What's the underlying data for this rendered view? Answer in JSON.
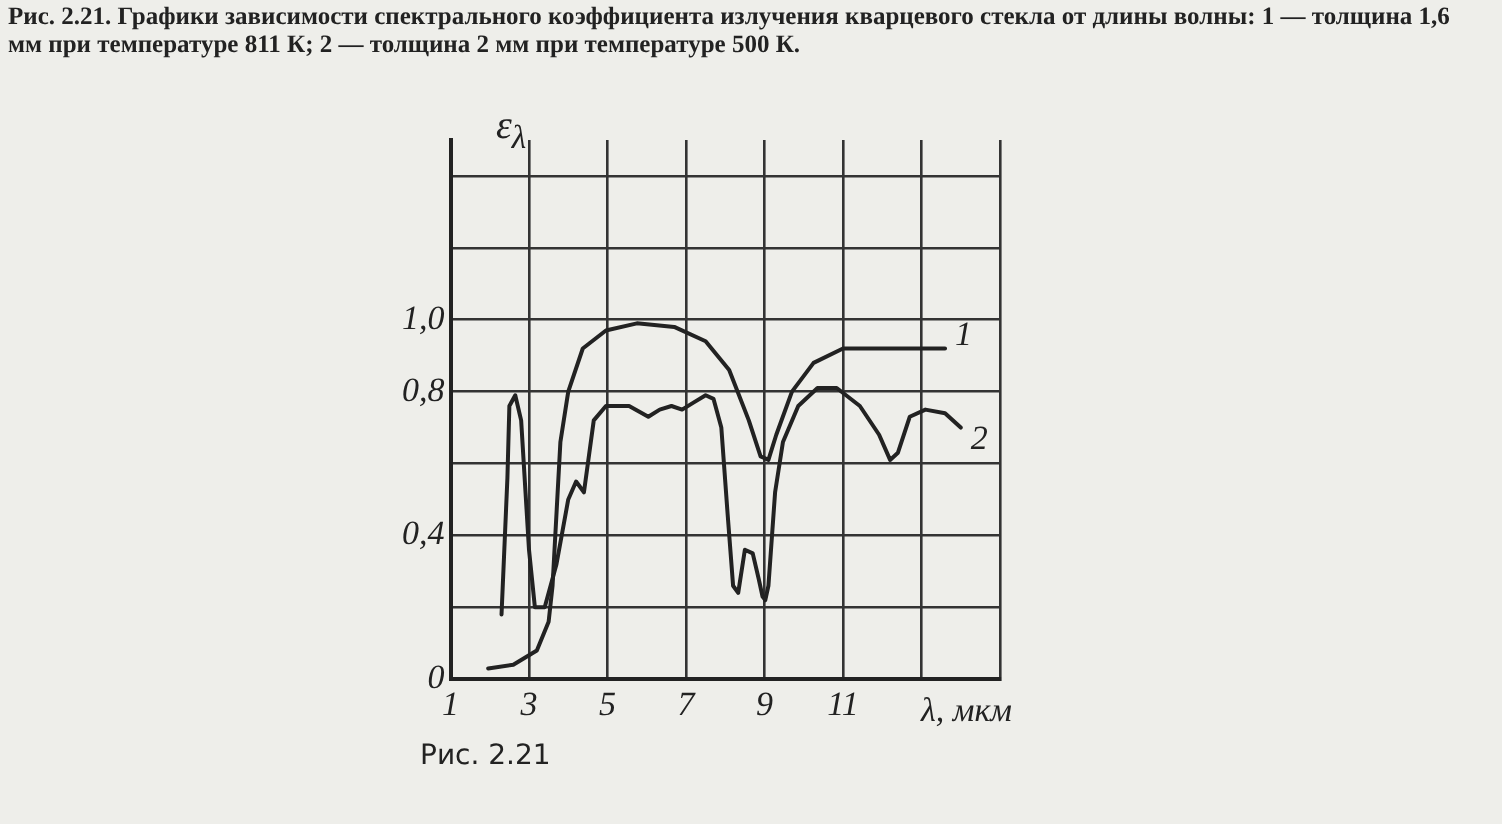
{
  "chart_data": {
    "type": "line",
    "title": "Рис. 2.21. Графики зависимости спектрального коэффициента излучения кварцевого стекла от длины волны: 1 — толщина 1,6 мм при температуре 811 К; 2 — толщина 2 мм при температуре 500 К.",
    "xlabel": "λ, мкм",
    "ylabel": "ε$_{λ}$",
    "annotations": [
      "Рис. 2.21"
    ],
    "xlim": [
      1,
      15
    ],
    "xticks": [
      1,
      3,
      5,
      7,
      9,
      11,
      {
        "value": 13,
        "label": null
      },
      {
        "value": 15,
        "label": null
      }
    ],
    "ylim": [
      0,
      1.5
    ],
    "yticks": [
      0,
      {
        "value": 0.2,
        "label": null
      },
      {
        "value": 0.4,
        "label": "0,4"
      },
      {
        "value": 0.6,
        "label": null
      },
      {
        "value": 0.8,
        "label": "0,8"
      },
      {
        "value": 1.0,
        "label": "1,0"
      },
      {
        "value": 1.2,
        "label": null
      },
      {
        "value": 1.4,
        "label": null
      }
    ],
    "grid": true,
    "marker": "none",
    "line_style": "solid",
    "series": [
      {
        "name": "1",
        "color": "#222222",
        "x": [
          1.96,
          2.6,
          3.2,
          3.5,
          3.6,
          3.7,
          3.8,
          4.0,
          4.37,
          4.96,
          5.75,
          6.7,
          7.5,
          8.1,
          8.6,
          8.9,
          9.1,
          9.3,
          9.7,
          10.25,
          11.0,
          12.2,
          13.6
        ],
        "values": [
          0.03,
          0.04,
          0.08,
          0.16,
          0.26,
          0.46,
          0.66,
          0.8,
          0.92,
          0.97,
          0.99,
          0.98,
          0.94,
          0.86,
          0.72,
          0.62,
          0.61,
          0.68,
          0.8,
          0.88,
          0.92,
          0.92,
          0.92
        ]
      },
      {
        "name": "2",
        "color": "#222222",
        "x": [
          2.3,
          2.45,
          2.5,
          2.65,
          2.8,
          3.0,
          3.15,
          3.4,
          3.7,
          4.0,
          4.2,
          4.4,
          4.5,
          4.65,
          4.96,
          5.55,
          6.04,
          6.33,
          6.63,
          6.9,
          7.2,
          7.5,
          7.7,
          7.9,
          8.06,
          8.2,
          8.33,
          8.5,
          8.7,
          8.85,
          8.95,
          9.02,
          9.1,
          9.27,
          9.47,
          9.86,
          10.35,
          10.84,
          11.43,
          11.92,
          12.2,
          12.4,
          12.7,
          13.1,
          13.6,
          14.0
        ],
        "values": [
          0.18,
          0.56,
          0.76,
          0.79,
          0.72,
          0.36,
          0.2,
          0.2,
          0.32,
          0.5,
          0.55,
          0.52,
          0.6,
          0.72,
          0.76,
          0.76,
          0.73,
          0.75,
          0.76,
          0.75,
          0.77,
          0.79,
          0.78,
          0.7,
          0.46,
          0.26,
          0.24,
          0.36,
          0.35,
          0.28,
          0.23,
          0.22,
          0.26,
          0.52,
          0.66,
          0.76,
          0.81,
          0.81,
          0.76,
          0.68,
          0.61,
          0.63,
          0.73,
          0.75,
          0.74,
          0.7
        ]
      }
    ]
  }
}
